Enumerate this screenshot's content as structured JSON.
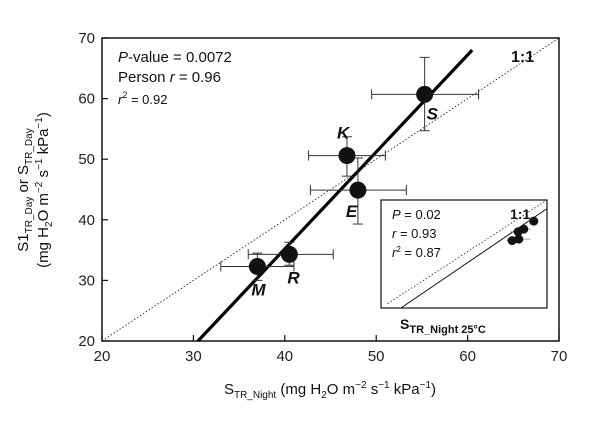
{
  "chart_data": [
    {
      "type": "scatter",
      "xlabel_parts": [
        "S",
        "TR_Night",
        " (mg H",
        "2",
        "O m",
        "−2",
        " s",
        "−1",
        " kPa",
        "−1",
        ")"
      ],
      "ylabel_line1_parts": [
        "S1",
        "TR_Day",
        " or S",
        "TR_Day"
      ],
      "ylabel_line2_parts": [
        "(mg H",
        "2",
        "O m",
        "−2",
        " s",
        "−1",
        " kPa",
        "−1",
        ")"
      ],
      "xlim": [
        20,
        70
      ],
      "ylim": [
        20,
        70
      ],
      "x_ticks": [
        20,
        30,
        40,
        50,
        60,
        70
      ],
      "y_ticks": [
        20,
        30,
        40,
        50,
        60,
        70
      ],
      "stats": {
        "p_label": "P",
        "p_text": "-value = 0.0072",
        "r_label_prefix": "Person ",
        "r_symbol": "r",
        "r_value": " = 0.96",
        "r2_symbol": "r",
        "r2_sup": "2",
        "r2_value": " = 0.92"
      },
      "reference_line": {
        "label": "1:1",
        "slope": 1,
        "intercept": 0
      },
      "regression_line": {
        "x": [
          30.5,
          60.5
        ],
        "y": [
          20,
          68
        ]
      },
      "points": [
        {
          "label": "S",
          "x": 55.3,
          "y": 60.7,
          "xerr": [
            49.5,
            61.2
          ],
          "yerr": [
            54.7,
            66.8
          ]
        },
        {
          "label": "K",
          "x": 46.8,
          "y": 50.6,
          "xerr": [
            42.6,
            51.0
          ],
          "yerr": [
            47.2,
            53.7
          ]
        },
        {
          "label": "E",
          "x": 48.0,
          "y": 44.9,
          "xerr": [
            42.8,
            53.3
          ],
          "yerr": [
            39.3,
            50.2
          ]
        },
        {
          "label": "M",
          "x": 37.0,
          "y": 32.3,
          "xerr": [
            33.0,
            41.0
          ],
          "yerr": [
            30.0,
            34.5
          ]
        },
        {
          "label": "R",
          "x": 40.5,
          "y": 34.3,
          "xerr": [
            36.0,
            45.3
          ],
          "yerr": [
            32.5,
            36.3
          ]
        }
      ]
    },
    {
      "type": "scatter",
      "title_main": "S",
      "title_sub": "TR_Night 25°C",
      "stats": {
        "p_symbol": "P",
        "p_value": " = 0.02",
        "r_symbol": "r",
        "r_value": " = 0.93",
        "r2_symbol": "r",
        "r2_sup": "2",
        "r2_value": " = 0.87"
      },
      "reference_line": {
        "label": "1:1",
        "slope": 1,
        "intercept": 0
      },
      "xlim": [
        20,
        70
      ],
      "ylim": [
        20,
        70
      ],
      "regression_line": {
        "x": [
          26,
          70
        ],
        "y": [
          20,
          66
        ]
      },
      "points": [
        {
          "x": 66.0,
          "y": 60.2,
          "xerr": [
            64.5,
            67.5
          ],
          "yerr": [
            59.0,
            61.3
          ]
        },
        {
          "x": 63.0,
          "y": 56.5,
          "xerr": [
            61.0,
            65.0
          ],
          "yerr": [
            55.5,
            57.5
          ]
        },
        {
          "x": 61.3,
          "y": 55.3,
          "xerr": [
            59.0,
            63.8
          ],
          "yerr": [
            54.2,
            56.4
          ]
        },
        {
          "x": 61.5,
          "y": 51.9,
          "xerr": [
            58.0,
            65.0
          ],
          "yerr": [
            50.6,
            53.2
          ]
        },
        {
          "x": 59.5,
          "y": 51.2,
          "xerr": [
            57.8,
            61.3
          ],
          "yerr": [
            50.1,
            52.4
          ]
        }
      ]
    }
  ]
}
